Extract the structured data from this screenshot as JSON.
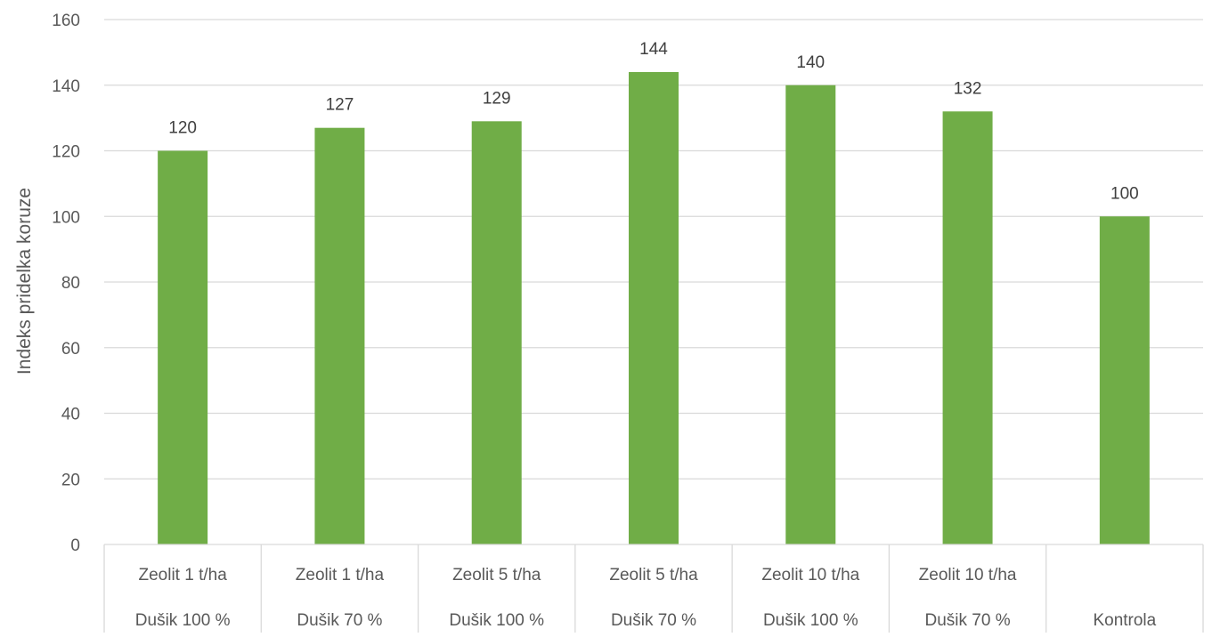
{
  "chart_data": {
    "type": "bar",
    "categories": [
      [
        "Zeolit 1 t/ha",
        "Dušik 100 %"
      ],
      [
        "Zeolit 1 t/ha",
        "Dušik 70 %"
      ],
      [
        "Zeolit 5 t/ha",
        "Dušik 100 %"
      ],
      [
        "Zeolit 5 t/ha",
        "Dušik 70 %"
      ],
      [
        "Zeolit 10 t/ha",
        "Dušik 100 %"
      ],
      [
        "Zeolit 10 t/ha",
        "Dušik 70 %"
      ],
      [
        "",
        "Kontrola"
      ]
    ],
    "values": [
      120,
      127,
      129,
      144,
      140,
      132,
      100
    ],
    "data_labels": [
      "120",
      "127",
      "129",
      "144",
      "140",
      "132",
      "100"
    ],
    "title": "",
    "xlabel": "",
    "ylabel": "Indeks pridelka koruze",
    "ylim": [
      0,
      160
    ],
    "yticks": [
      0,
      20,
      40,
      60,
      80,
      100,
      120,
      140,
      160
    ],
    "grid": true,
    "legend": "none",
    "colors": {
      "bar": "#70AD47",
      "grid": "#D9D9D9",
      "axis_text": "#595959",
      "data_label": "#404040"
    }
  }
}
